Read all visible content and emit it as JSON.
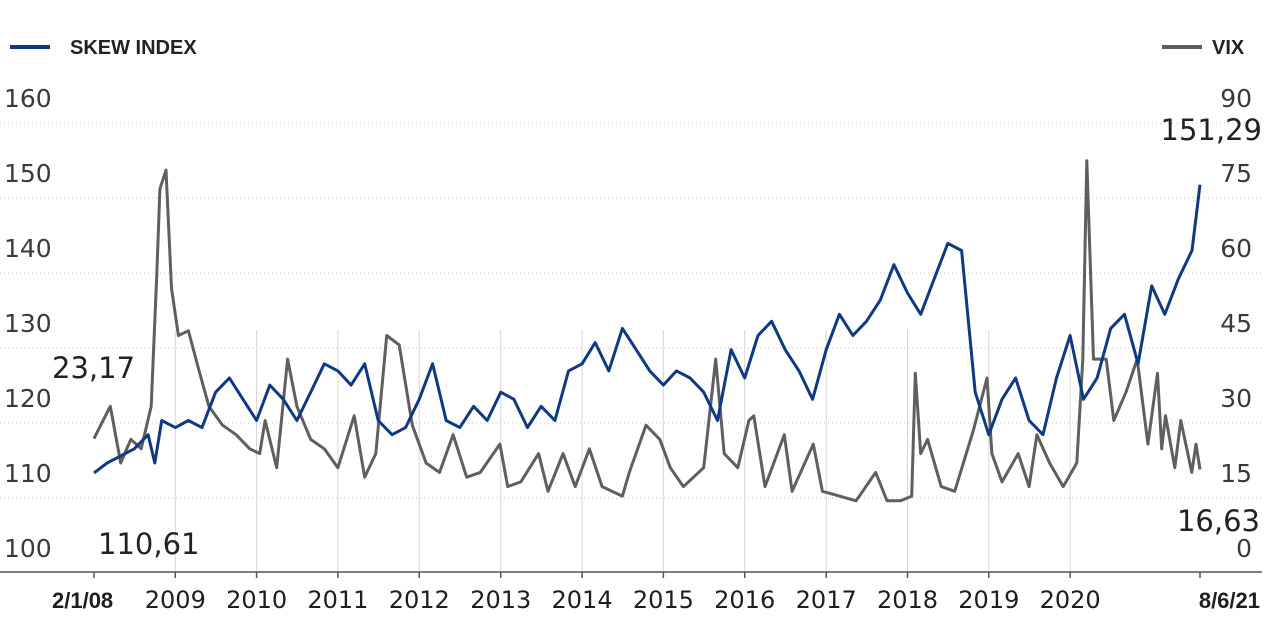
{
  "chart_data": {
    "type": "line",
    "legend": {
      "left": {
        "label": "SKEW INDEX",
        "color": "#0f3a83"
      },
      "right": {
        "label": "VIX",
        "color": "#5f5f5f"
      }
    },
    "y_left": {
      "min": 100,
      "max": 160,
      "ticks": [
        "160",
        "150",
        "140",
        "130",
        "120",
        "110",
        "100"
      ]
    },
    "y_right": {
      "min": 0,
      "max": 90,
      "ticks": [
        "90",
        "75",
        "60",
        "45",
        "30",
        "15",
        "0"
      ]
    },
    "x_range": [
      "2008-01-02",
      "2021-08-06"
    ],
    "x_ticks": [
      {
        "label": "2/1/08",
        "date": "2008-01-02",
        "bold": true
      },
      {
        "label": "2009",
        "date": "2009-01-01",
        "bold": false
      },
      {
        "label": "2010",
        "date": "2010-01-01",
        "bold": false
      },
      {
        "label": "2011",
        "date": "2011-01-01",
        "bold": false
      },
      {
        "label": "2012",
        "date": "2012-01-01",
        "bold": false
      },
      {
        "label": "2013",
        "date": "2013-01-01",
        "bold": false
      },
      {
        "label": "2014",
        "date": "2014-01-01",
        "bold": false
      },
      {
        "label": "2015",
        "date": "2015-01-01",
        "bold": false
      },
      {
        "label": "2016",
        "date": "2016-01-01",
        "bold": false
      },
      {
        "label": "2017",
        "date": "2017-01-01",
        "bold": false
      },
      {
        "label": "2018",
        "date": "2018-01-01",
        "bold": false
      },
      {
        "label": "2019",
        "date": "2019-01-01",
        "bold": false
      },
      {
        "label": "2020",
        "date": "2020-01-01",
        "bold": false
      },
      {
        "label": "8/6/21",
        "date": "2021-08-06",
        "bold": true
      }
    ],
    "annotations": {
      "skew_start": "110,61",
      "vix_start": "23,17",
      "skew_end": "151,29",
      "vix_end": "16,63"
    },
    "grid": true,
    "series": [
      {
        "name": "SKEW INDEX",
        "axis": "left",
        "color": "#0f3a83",
        "points": [
          [
            "2008-01-02",
            110.6
          ],
          [
            "2008-03-01",
            112
          ],
          [
            "2008-05-01",
            113
          ],
          [
            "2008-07-01",
            114
          ],
          [
            "2008-09-01",
            116
          ],
          [
            "2008-10-01",
            112
          ],
          [
            "2008-11-01",
            118
          ],
          [
            "2009-01-01",
            117
          ],
          [
            "2009-03-01",
            118
          ],
          [
            "2009-05-01",
            117
          ],
          [
            "2009-07-01",
            122
          ],
          [
            "2009-09-01",
            124
          ],
          [
            "2009-11-01",
            121
          ],
          [
            "2010-01-01",
            118
          ],
          [
            "2010-03-01",
            123
          ],
          [
            "2010-05-01",
            121
          ],
          [
            "2010-07-01",
            118
          ],
          [
            "2010-09-01",
            122
          ],
          [
            "2010-11-01",
            126
          ],
          [
            "2011-01-01",
            125
          ],
          [
            "2011-03-01",
            123
          ],
          [
            "2011-05-01",
            126
          ],
          [
            "2011-07-01",
            118
          ],
          [
            "2011-09-01",
            116
          ],
          [
            "2011-11-01",
            117
          ],
          [
            "2012-01-01",
            121
          ],
          [
            "2012-03-01",
            126
          ],
          [
            "2012-05-01",
            118
          ],
          [
            "2012-07-01",
            117
          ],
          [
            "2012-09-01",
            120
          ],
          [
            "2012-11-01",
            118
          ],
          [
            "2013-01-01",
            122
          ],
          [
            "2013-03-01",
            121
          ],
          [
            "2013-05-01",
            117
          ],
          [
            "2013-07-01",
            120
          ],
          [
            "2013-09-01",
            118
          ],
          [
            "2013-11-01",
            125
          ],
          [
            "2014-01-01",
            126
          ],
          [
            "2014-03-01",
            129
          ],
          [
            "2014-05-01",
            125
          ],
          [
            "2014-07-01",
            131
          ],
          [
            "2014-09-01",
            128
          ],
          [
            "2014-11-01",
            125
          ],
          [
            "2015-01-01",
            123
          ],
          [
            "2015-03-01",
            125
          ],
          [
            "2015-05-01",
            124
          ],
          [
            "2015-07-01",
            122
          ],
          [
            "2015-09-01",
            118
          ],
          [
            "2015-11-01",
            128
          ],
          [
            "2016-01-01",
            124
          ],
          [
            "2016-03-01",
            130
          ],
          [
            "2016-05-01",
            132
          ],
          [
            "2016-07-01",
            128
          ],
          [
            "2016-09-01",
            125
          ],
          [
            "2016-11-01",
            121
          ],
          [
            "2017-01-01",
            128
          ],
          [
            "2017-03-01",
            133
          ],
          [
            "2017-05-01",
            130
          ],
          [
            "2017-07-01",
            132
          ],
          [
            "2017-09-01",
            135
          ],
          [
            "2017-11-01",
            140
          ],
          [
            "2018-01-01",
            136
          ],
          [
            "2018-03-01",
            133
          ],
          [
            "2018-05-01",
            138
          ],
          [
            "2018-07-01",
            143
          ],
          [
            "2018-09-01",
            142
          ],
          [
            "2018-11-01",
            122
          ],
          [
            "2019-01-01",
            116
          ],
          [
            "2019-03-01",
            121
          ],
          [
            "2019-05-01",
            124
          ],
          [
            "2019-07-01",
            118
          ],
          [
            "2019-09-01",
            116
          ],
          [
            "2019-11-01",
            124
          ],
          [
            "2020-01-01",
            130
          ],
          [
            "2020-03-01",
            121
          ],
          [
            "2020-05-01",
            124
          ],
          [
            "2020-07-01",
            131
          ],
          [
            "2020-09-01",
            133
          ],
          [
            "2020-11-01",
            126
          ],
          [
            "2021-01-01",
            137
          ],
          [
            "2021-03-01",
            133
          ],
          [
            "2021-05-01",
            138
          ],
          [
            "2021-07-01",
            142
          ],
          [
            "2021-08-06",
            151.29
          ]
        ]
      },
      {
        "name": "VIX",
        "axis": "right",
        "color": "#5f5f5f",
        "points": [
          [
            "2008-01-02",
            23.17
          ],
          [
            "2008-02-01",
            26
          ],
          [
            "2008-03-15",
            30
          ],
          [
            "2008-05-01",
            18
          ],
          [
            "2008-06-15",
            23
          ],
          [
            "2008-08-01",
            21
          ],
          [
            "2008-09-15",
            30
          ],
          [
            "2008-10-10",
            58
          ],
          [
            "2008-10-24",
            76
          ],
          [
            "2008-11-20",
            80
          ],
          [
            "2008-12-15",
            55
          ],
          [
            "2009-01-15",
            45
          ],
          [
            "2009-03-01",
            46
          ],
          [
            "2009-04-15",
            38
          ],
          [
            "2009-06-01",
            30
          ],
          [
            "2009-08-01",
            26
          ],
          [
            "2009-10-01",
            24
          ],
          [
            "2009-12-01",
            21
          ],
          [
            "2010-01-15",
            20
          ],
          [
            "2010-02-08",
            27
          ],
          [
            "2010-04-01",
            17
          ],
          [
            "2010-05-20",
            40
          ],
          [
            "2010-07-01",
            30
          ],
          [
            "2010-09-01",
            23
          ],
          [
            "2010-11-01",
            21
          ],
          [
            "2011-01-01",
            17
          ],
          [
            "2011-03-15",
            28
          ],
          [
            "2011-05-01",
            15
          ],
          [
            "2011-06-20",
            20
          ],
          [
            "2011-08-08",
            45
          ],
          [
            "2011-10-03",
            43
          ],
          [
            "2011-12-01",
            26
          ],
          [
            "2012-02-01",
            18
          ],
          [
            "2012-04-01",
            16
          ],
          [
            "2012-06-01",
            24
          ],
          [
            "2012-08-01",
            15
          ],
          [
            "2012-10-01",
            16
          ],
          [
            "2012-12-28",
            22
          ],
          [
            "2013-02-01",
            13
          ],
          [
            "2013-04-01",
            14
          ],
          [
            "2013-06-20",
            20
          ],
          [
            "2013-08-01",
            12
          ],
          [
            "2013-10-08",
            20
          ],
          [
            "2013-12-01",
            13
          ],
          [
            "2014-02-03",
            21
          ],
          [
            "2014-04-01",
            13
          ],
          [
            "2014-07-01",
            11
          ],
          [
            "2014-08-01",
            16
          ],
          [
            "2014-10-15",
            26
          ],
          [
            "2014-12-16",
            23
          ],
          [
            "2015-02-01",
            17
          ],
          [
            "2015-04-01",
            13
          ],
          [
            "2015-07-01",
            17
          ],
          [
            "2015-08-24",
            40
          ],
          [
            "2015-10-01",
            20
          ],
          [
            "2015-12-01",
            17
          ],
          [
            "2016-01-20",
            27
          ],
          [
            "2016-02-11",
            28
          ],
          [
            "2016-04-01",
            13
          ],
          [
            "2016-06-27",
            24
          ],
          [
            "2016-08-01",
            12
          ],
          [
            "2016-11-04",
            22
          ],
          [
            "2016-12-15",
            12
          ],
          [
            "2017-03-01",
            11
          ],
          [
            "2017-05-15",
            10
          ],
          [
            "2017-08-11",
            16
          ],
          [
            "2017-10-01",
            10
          ],
          [
            "2017-12-01",
            10
          ],
          [
            "2018-01-20",
            11
          ],
          [
            "2018-02-05",
            37
          ],
          [
            "2018-03-01",
            20
          ],
          [
            "2018-04-01",
            23
          ],
          [
            "2018-06-01",
            13
          ],
          [
            "2018-08-01",
            12
          ],
          [
            "2018-10-24",
            25
          ],
          [
            "2018-12-24",
            36
          ],
          [
            "2019-01-15",
            20
          ],
          [
            "2019-03-01",
            14
          ],
          [
            "2019-05-13",
            20
          ],
          [
            "2019-07-01",
            13
          ],
          [
            "2019-08-05",
            24
          ],
          [
            "2019-10-01",
            18
          ],
          [
            "2019-12-01",
            13
          ],
          [
            "2020-01-31",
            18
          ],
          [
            "2020-02-27",
            40
          ],
          [
            "2020-03-16",
            82
          ],
          [
            "2020-04-15",
            40
          ],
          [
            "2020-06-11",
            40
          ],
          [
            "2020-07-15",
            27
          ],
          [
            "2020-09-08",
            33
          ],
          [
            "2020-10-28",
            40
          ],
          [
            "2020-12-15",
            22
          ],
          [
            "2021-01-27",
            37
          ],
          [
            "2021-02-15",
            21
          ],
          [
            "2021-03-04",
            28
          ],
          [
            "2021-04-15",
            17
          ],
          [
            "2021-05-12",
            27
          ],
          [
            "2021-06-30",
            16
          ],
          [
            "2021-07-19",
            22
          ],
          [
            "2021-08-06",
            16.63
          ]
        ]
      }
    ]
  }
}
